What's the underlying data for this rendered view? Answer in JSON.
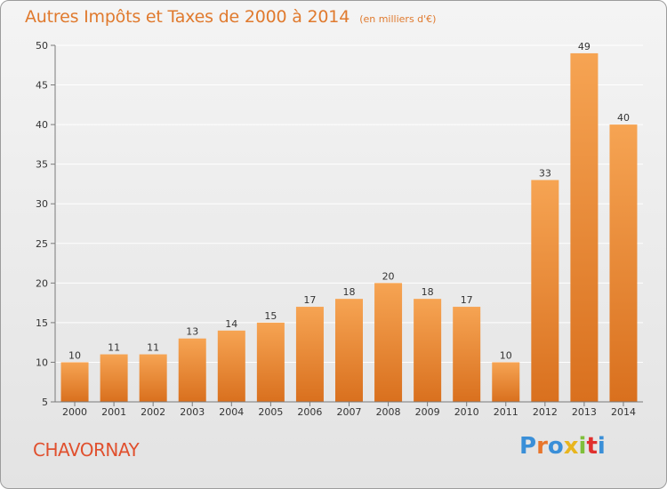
{
  "header": {
    "title": "Autres Impôts et Taxes de 2000 à 2014",
    "subtitle": "(en milliers d'€)"
  },
  "footer": {
    "place": "CHAVORNAY",
    "brand": "Proxiti",
    "brand_colors": [
      "#3a8fd8",
      "#e8762c",
      "#3a8fd8",
      "#e8b51e",
      "#7fbf3a",
      "#e0302e",
      "#3a8fd8"
    ]
  },
  "colors": {
    "bar_top": "#f6a453",
    "bar_bottom": "#d9701e",
    "text": "#333333",
    "axis": "#7a7a7a",
    "grid": "#ffffff",
    "title": "#e07a2e"
  },
  "chart_data": {
    "type": "bar",
    "categories": [
      "2000",
      "2001",
      "2002",
      "2003",
      "2004",
      "2005",
      "2006",
      "2007",
      "2008",
      "2009",
      "2010",
      "2011",
      "2012",
      "2013",
      "2014"
    ],
    "values": [
      10,
      11,
      11,
      13,
      14,
      15,
      17,
      18,
      20,
      18,
      17,
      10,
      33,
      49,
      40
    ],
    "labels": [
      "10",
      "11",
      "11",
      "13",
      "14",
      "15",
      "17",
      "18",
      "20",
      "18",
      "17",
      "10",
      "33",
      "49",
      "40"
    ],
    "ylim": [
      5,
      50
    ],
    "yticks": [
      "5",
      "10",
      "15",
      "20",
      "25",
      "30",
      "35",
      "40",
      "45",
      "50"
    ],
    "grid": true
  }
}
